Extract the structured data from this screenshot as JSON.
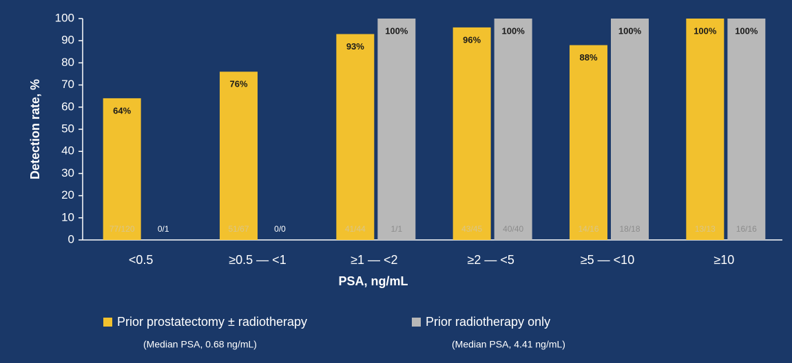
{
  "chart_data": {
    "type": "bar",
    "y_label": "Detection rate, %",
    "x_label": "PSA, ng/mL",
    "categories": [
      "<0.5",
      "≥0.5 — <1",
      "≥1 — <2",
      "≥2 — <5",
      "≥5 — <10",
      "≥10"
    ],
    "series": [
      {
        "name": "Prior prostatectomy ± radiotherapy",
        "note": "(Median PSA, 0.68 ng/mL)",
        "color": "#f2c12e",
        "values": [
          64,
          76,
          93,
          96,
          88,
          100
        ],
        "value_labels": [
          "64%",
          "76%",
          "93%",
          "96%",
          "88%",
          "100%"
        ],
        "counts": [
          "77/120",
          "51/67",
          "41/44",
          "43/45",
          "14/16",
          "13/13"
        ]
      },
      {
        "name": "Prior radiotherapy only",
        "note": "(Median PSA, 4.41 ng/mL)",
        "color": "#b8b8b8",
        "values": [
          0,
          null,
          100,
          100,
          100,
          100
        ],
        "value_labels": [
          null,
          null,
          "100%",
          "100%",
          "100%",
          "100%"
        ],
        "counts": [
          "0/1",
          "0/0",
          "1/1",
          "40/40",
          "18/18",
          "16/16"
        ]
      }
    ],
    "ylim": [
      0,
      100
    ],
    "yticks": [
      0,
      10,
      20,
      30,
      40,
      50,
      60,
      70,
      80,
      90,
      100
    ],
    "grid": false
  }
}
